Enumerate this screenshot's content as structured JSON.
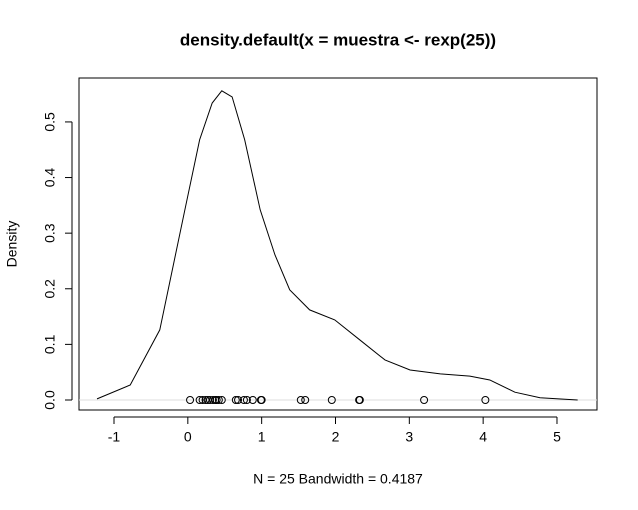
{
  "chart_data": {
    "type": "line",
    "title": "density.default(x = muestra <- rexp(25))",
    "xlabel": "N = 25   Bandwidth = 0.4187",
    "ylabel": "Density",
    "xlim": [
      -1.474,
      5.542
    ],
    "ylim": [
      -0.018,
      0.579
    ],
    "xticks": [
      -1,
      0,
      1,
      2,
      3,
      4,
      5
    ],
    "yticks": [
      {
        "value": 0,
        "label": "0.0"
      },
      {
        "value": 0.1,
        "label": "0.1"
      },
      {
        "value": 0.2,
        "label": "0.2"
      },
      {
        "value": 0.3,
        "label": "0.3"
      },
      {
        "value": 0.4,
        "label": "0.4"
      },
      {
        "value": 0.5,
        "label": "0.5"
      }
    ],
    "color": "#000000",
    "curve": {
      "x": [
        -1.23,
        -0.78,
        -0.38,
        -0.04,
        0.16,
        0.33,
        0.46,
        0.6,
        0.77,
        0.98,
        1.18,
        1.38,
        1.65,
        1.99,
        2.33,
        2.67,
        3.01,
        3.42,
        3.82,
        4.09,
        4.43,
        4.77,
        5.28
      ],
      "y": [
        0.002,
        0.027,
        0.126,
        0.342,
        0.468,
        0.534,
        0.556,
        0.545,
        0.468,
        0.342,
        0.261,
        0.198,
        0.162,
        0.144,
        0.108,
        0.072,
        0.054,
        0.047,
        0.043,
        0.036,
        0.014,
        0.004,
        0.0
      ]
    },
    "points": {
      "x": [
        0.03,
        0.16,
        0.2,
        0.24,
        0.27,
        0.3,
        0.34,
        0.37,
        0.39,
        0.42,
        0.46,
        0.65,
        0.68,
        0.76,
        0.8,
        0.88,
        0.99,
        1.0,
        1.53,
        1.59,
        1.95,
        2.32,
        2.33,
        3.2,
        4.03
      ],
      "y": [
        0,
        0,
        0,
        0,
        0,
        0,
        0,
        0,
        0,
        0,
        0,
        0,
        0,
        0,
        0,
        0,
        0,
        0,
        0,
        0,
        0,
        0,
        0,
        0,
        0
      ]
    }
  }
}
